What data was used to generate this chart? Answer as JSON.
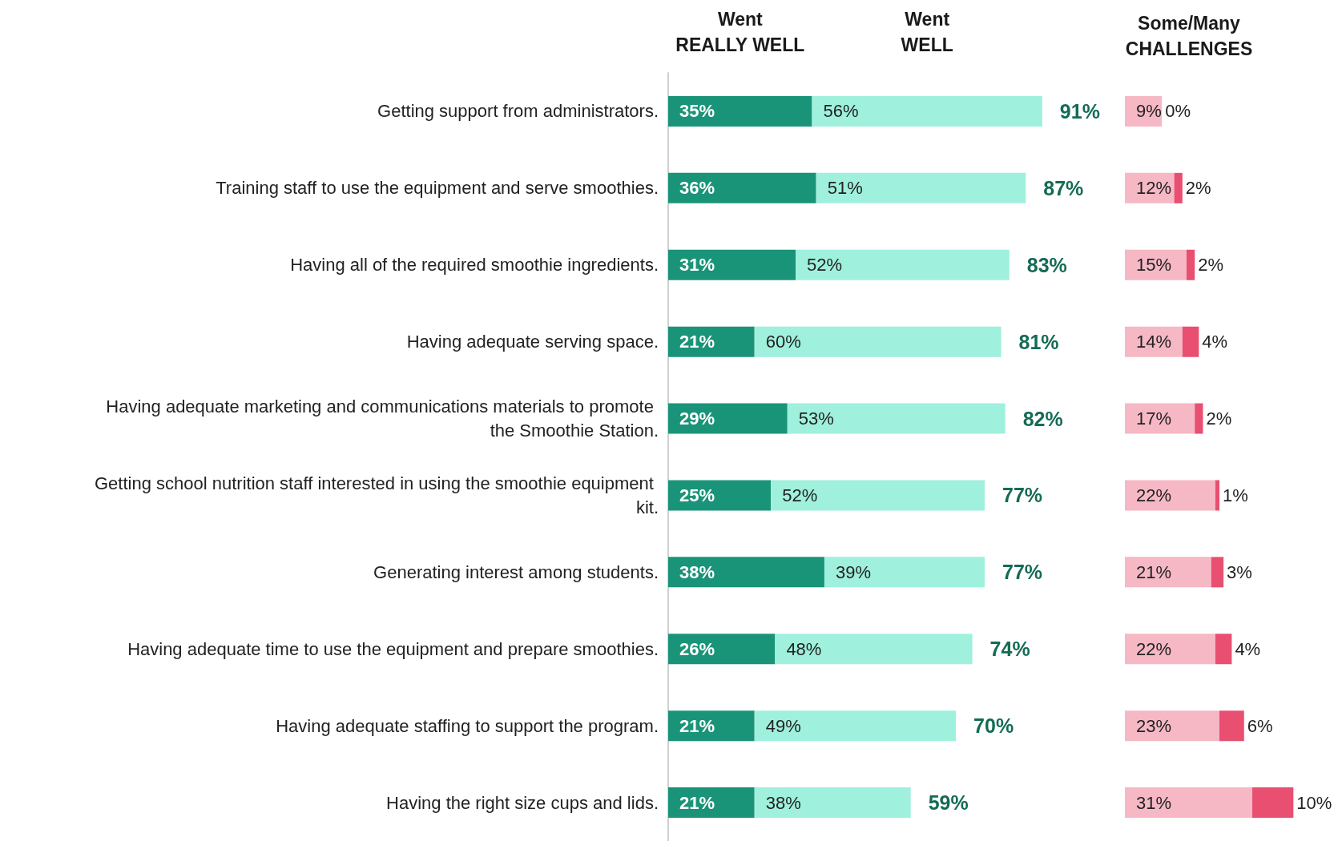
{
  "chart_data": [
    {
      "type": "bar",
      "orientation": "horizontal",
      "stacked": true,
      "tick_labels": "y",
      "categories": [
        "Getting support from administrators.",
        "Training staff to use the equipment and serve smoothies.",
        "Having all of the required smoothie ingredients.",
        "Having adequate serving space.",
        "Having adequate marketing and communications materials to promote the Smoothie Station.",
        "Getting school nutrition staff interested in using the smoothie equipment kit.",
        "Generating interest among students.",
        "Having adequate time to use the equipment and prepare smoothies.",
        "Having adequate staffing to support the program.",
        "Having the right size cups and lids."
      ],
      "series": [
        {
          "name": "Went REALLY WELL",
          "color": "#1a9478",
          "values": [
            35,
            36,
            31,
            21,
            29,
            25,
            38,
            26,
            21,
            21
          ],
          "value_labels": [
            "35%",
            "36%",
            "31%",
            "21%",
            "29%",
            "25%",
            "38%",
            "26%",
            "21%",
            "21%"
          ]
        },
        {
          "name": "Went WELL",
          "color": "#9ff0dc",
          "values": [
            56,
            51,
            52,
            60,
            53,
            52,
            39,
            48,
            49,
            38
          ],
          "value_labels": [
            "56%",
            "51%",
            "52%",
            "60%",
            "53%",
            "52%",
            "39%",
            "48%",
            "49%",
            "38%"
          ]
        }
      ],
      "totals": [
        "91%",
        "87%",
        "83%",
        "81%",
        "82%",
        "77%",
        "77%",
        "74%",
        "70%",
        "59%"
      ]
    },
    {
      "type": "bar",
      "orientation": "horizontal",
      "stacked": true,
      "tick_labels": false,
      "title": "Some/Many CHALLENGES",
      "categories": [
        null,
        null,
        null,
        null,
        null,
        null,
        null,
        null,
        null,
        null
      ],
      "series": [
        {
          "color": "#f5b8c4",
          "values": [
            9,
            12,
            15,
            14,
            17,
            22,
            21,
            22,
            23,
            31
          ],
          "value_labels": [
            "9%",
            "12%",
            "15%",
            "14%",
            "17%",
            "22%",
            "21%",
            "22%",
            "23%",
            "31%"
          ]
        },
        {
          "color": "#e94f70",
          "values": [
            0,
            2,
            2,
            4,
            2,
            1,
            3,
            4,
            6,
            10
          ],
          "value_labels": [
            "0%",
            "2%",
            "2%",
            "4%",
            "2%",
            "1%",
            "3%",
            "4%",
            "6%",
            "10%"
          ]
        }
      ]
    }
  ]
}
